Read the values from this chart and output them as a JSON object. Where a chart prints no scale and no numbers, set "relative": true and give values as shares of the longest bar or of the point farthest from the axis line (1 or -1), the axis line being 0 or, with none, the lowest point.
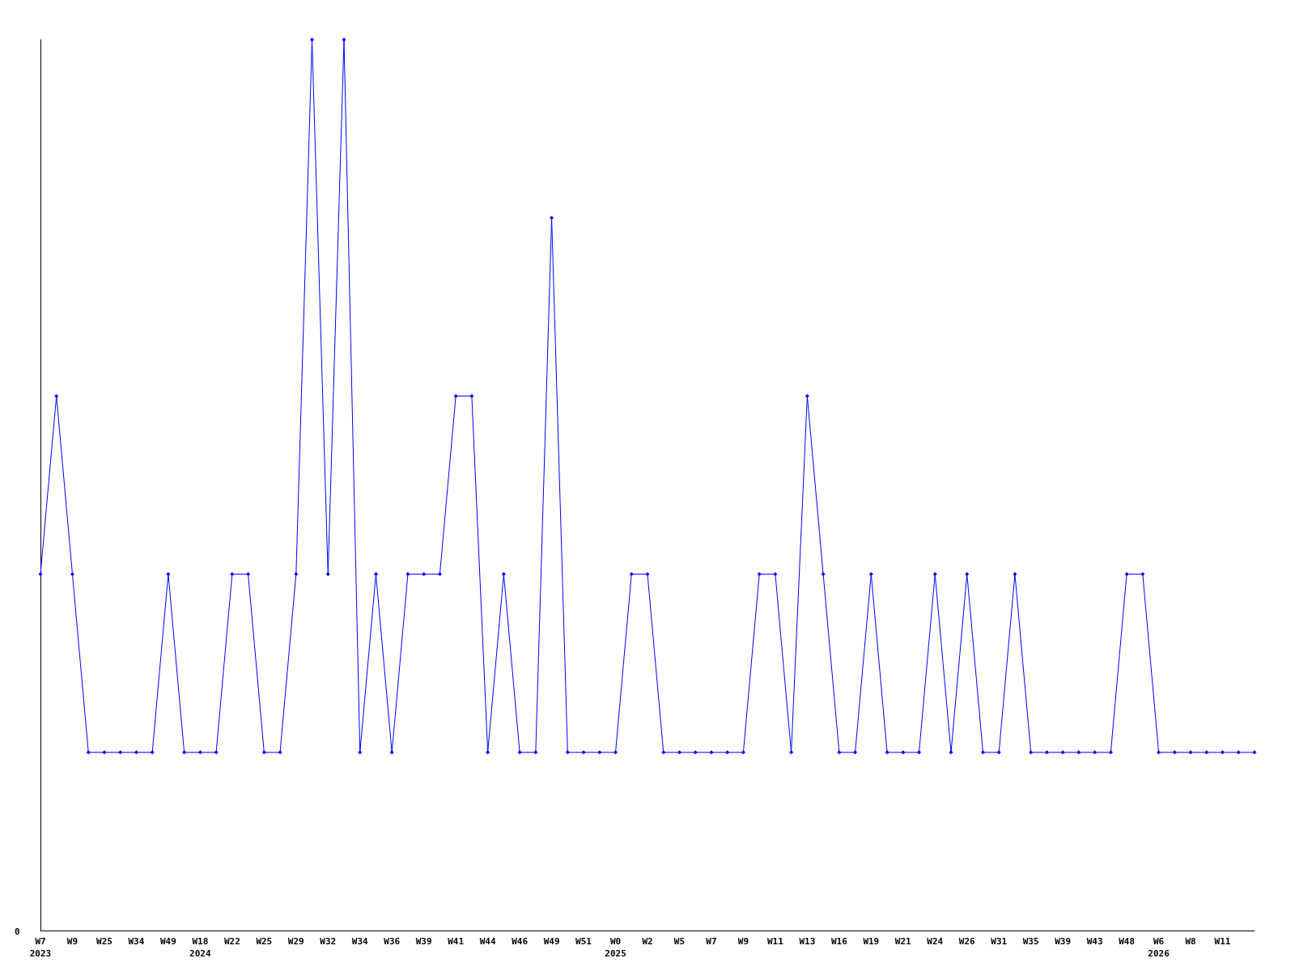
{
  "chart_data": {
    "type": "line",
    "relative": true,
    "marker": "diamond",
    "line_style": "solid",
    "annotations": [
      "0"
    ],
    "categories": [
      "W7\n2023",
      null,
      "W9",
      null,
      "W25",
      null,
      "W34",
      null,
      "W49",
      null,
      "W18\n2024",
      null,
      "W22",
      null,
      "W25",
      null,
      "W29",
      null,
      "W32",
      null,
      "W34",
      null,
      "W36",
      null,
      "W39",
      null,
      "W41",
      null,
      "W44",
      null,
      "W46",
      null,
      "W49",
      null,
      "W51",
      null,
      "W0\n2025",
      null,
      "W2",
      null,
      "W5",
      null,
      "W7",
      null,
      "W9",
      null,
      "W11",
      null,
      "W13",
      null,
      "W16",
      null,
      "W19",
      null,
      "W21",
      null,
      "W24",
      null,
      "W26",
      null,
      "W31",
      null,
      "W35",
      null,
      "W39",
      null,
      "W43",
      null,
      "W48",
      null,
      "W6\n2026",
      null,
      "W8",
      null,
      "W11",
      null,
      null
    ],
    "series": [
      {
        "color": "#0000ff",
        "values": [
          0.4,
          0.6,
          0.4,
          0.2,
          0.2,
          0.2,
          0.2,
          0.2,
          0.4,
          0.2,
          0.2,
          0.2,
          0.4,
          0.4,
          0.2,
          0.2,
          0.4,
          1,
          0.4,
          1,
          0.2,
          0.4,
          0.2,
          0.4,
          0.4,
          0.4,
          0.6,
          0.6,
          0.2,
          0.4,
          0.2,
          0.2,
          0.8,
          0.2,
          0.2,
          0.2,
          0.2,
          0.4,
          0.4,
          0.2,
          0.2,
          0.2,
          0.2,
          0.2,
          0.2,
          0.4,
          0.4,
          0.2,
          0.6,
          0.4,
          0.2,
          0.2,
          0.4,
          0.2,
          0.2,
          0.2,
          0.4,
          0.2,
          0.4,
          0.2,
          0.2,
          0.4,
          0.2,
          0.2,
          0.2,
          0.2,
          0.2,
          0.2,
          0.4,
          0.4,
          0.2,
          0.2,
          0.2,
          0.2,
          0.2,
          0.2,
          0.2
        ]
      }
    ]
  }
}
